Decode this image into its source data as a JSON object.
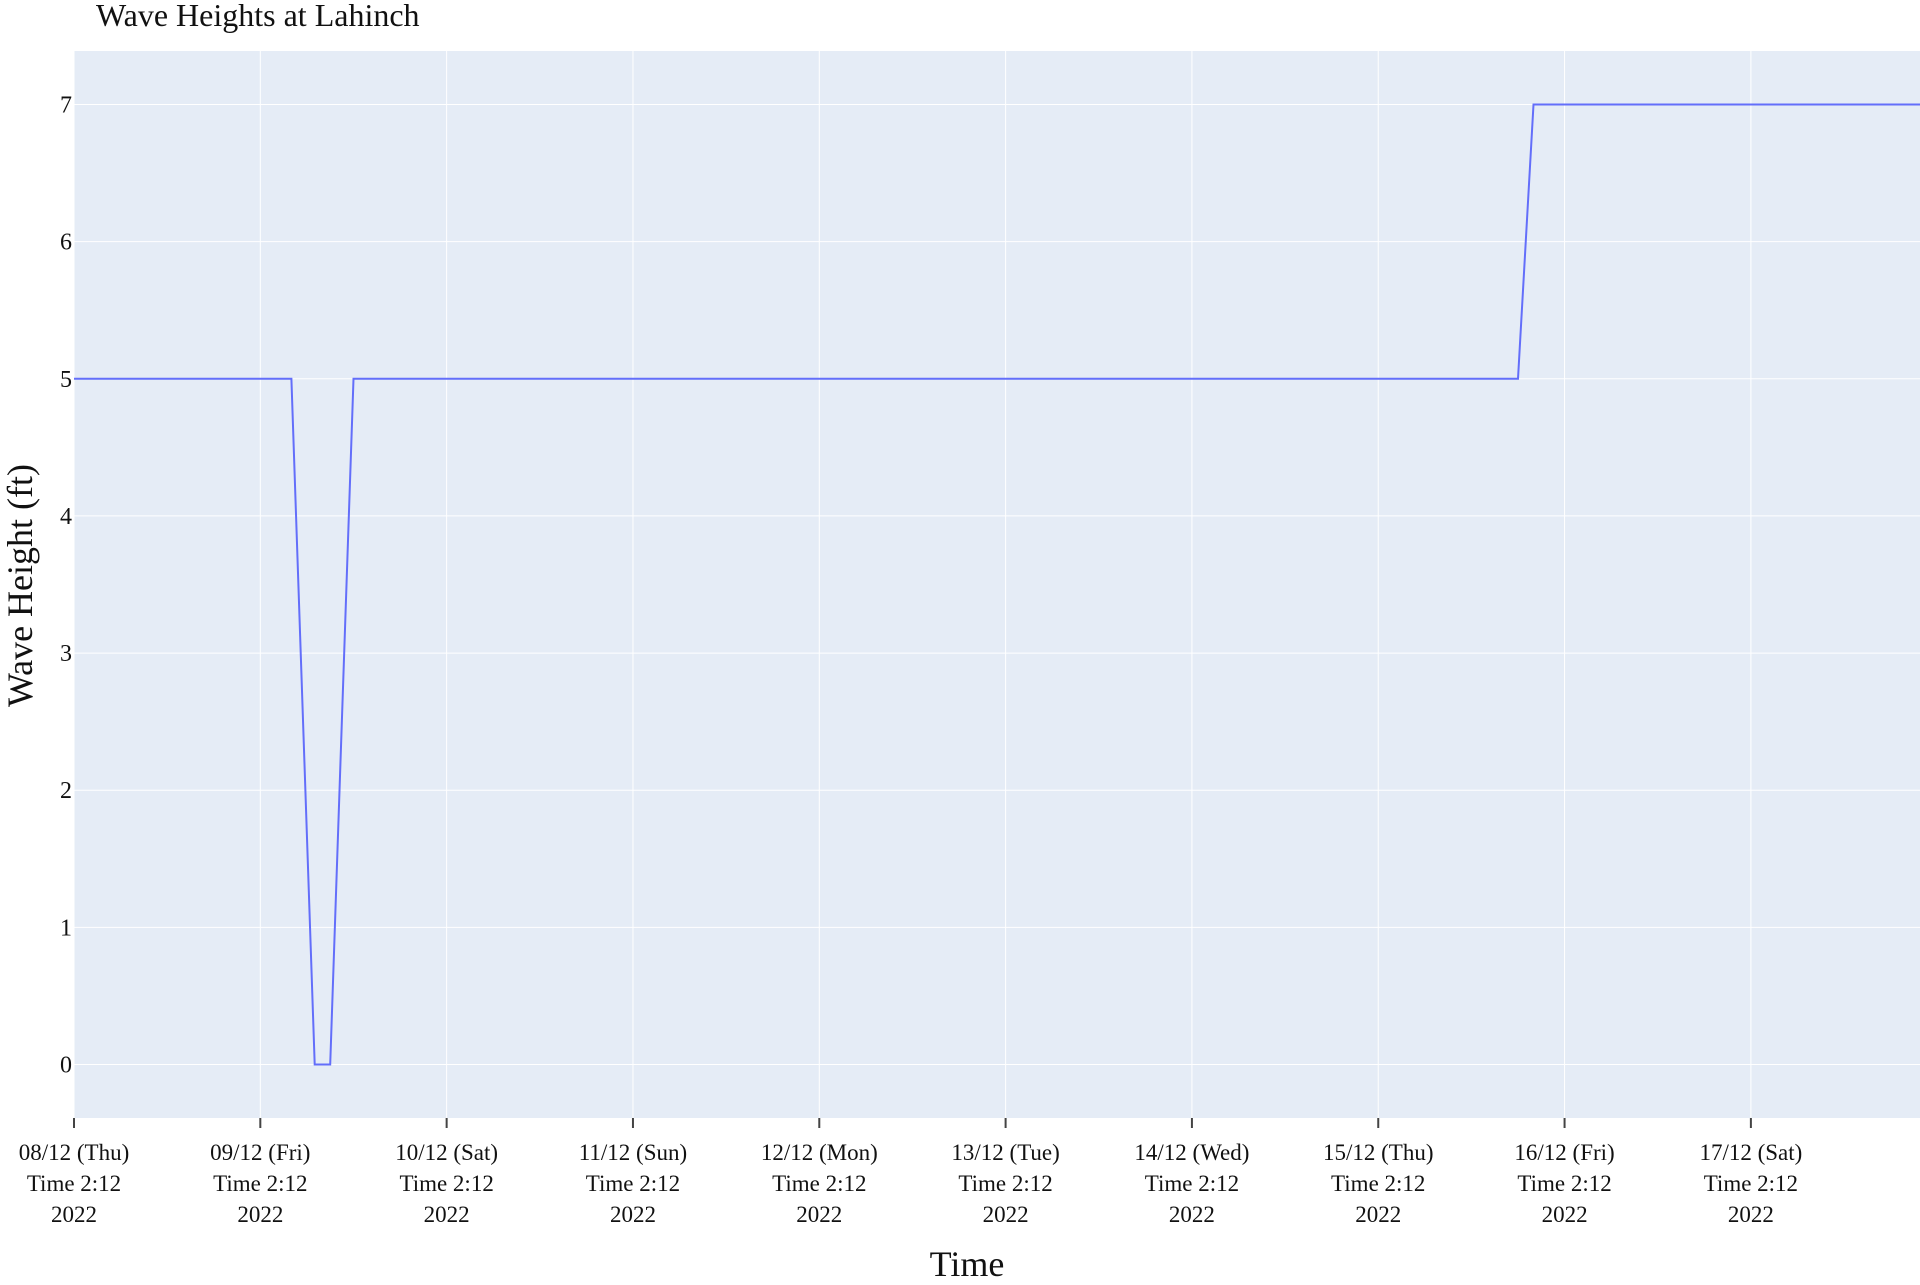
{
  "chart_data": {
    "type": "line",
    "title": "Wave Heights at Lahinch",
    "xlabel": "Time",
    "ylabel": "Wave Height (ft)",
    "x_tick_labels": [
      [
        "08/12 (Thu)",
        "Time 2:12",
        "2022"
      ],
      [
        "09/12 (Fri)",
        "Time 2:12",
        "2022"
      ],
      [
        "10/12 (Sat)",
        "Time 2:12",
        "2022"
      ],
      [
        "11/12 (Sun)",
        "Time 2:12",
        "2022"
      ],
      [
        "12/12 (Mon)",
        "Time 2:12",
        "2022"
      ],
      [
        "13/12 (Tue)",
        "Time 2:12",
        "2022"
      ],
      [
        "14/12 (Wed)",
        "Time 2:12",
        "2022"
      ],
      [
        "15/12 (Thu)",
        "Time 2:12",
        "2022"
      ],
      [
        "16/12 (Fri)",
        "Time 2:12",
        "2022"
      ],
      [
        "17/12 (Sat)",
        "Time 2:12",
        "2022"
      ]
    ],
    "x_tick_dates": [
      "2022-12-08",
      "2022-12-09",
      "2022-12-10",
      "2022-12-11",
      "2022-12-12",
      "2022-12-13",
      "2022-12-14",
      "2022-12-15",
      "2022-12-16",
      "2022-12-17"
    ],
    "y_ticks": [
      0,
      1,
      2,
      3,
      4,
      5,
      6,
      7
    ],
    "xlim": [
      "2022-12-08 02:12",
      "2022-12-17 23:59"
    ],
    "ylim": [
      -0.39,
      7.39
    ],
    "grid": true,
    "series": [
      {
        "color": "#636efa",
        "x": [
          "2022-12-08 02:12",
          "2022-12-09 06:12",
          "2022-12-09 09:12",
          "2022-12-09 11:12",
          "2022-12-09 14:12",
          "2022-12-15 20:12",
          "2022-12-15 22:12",
          "2022-12-17 23:59"
        ],
        "y": [
          5,
          5,
          0,
          0,
          5,
          5,
          7,
          7
        ]
      }
    ]
  },
  "colors": {
    "plot_background": "#e5ecf6",
    "grid": "#ffffff",
    "line": "#636efa"
  }
}
